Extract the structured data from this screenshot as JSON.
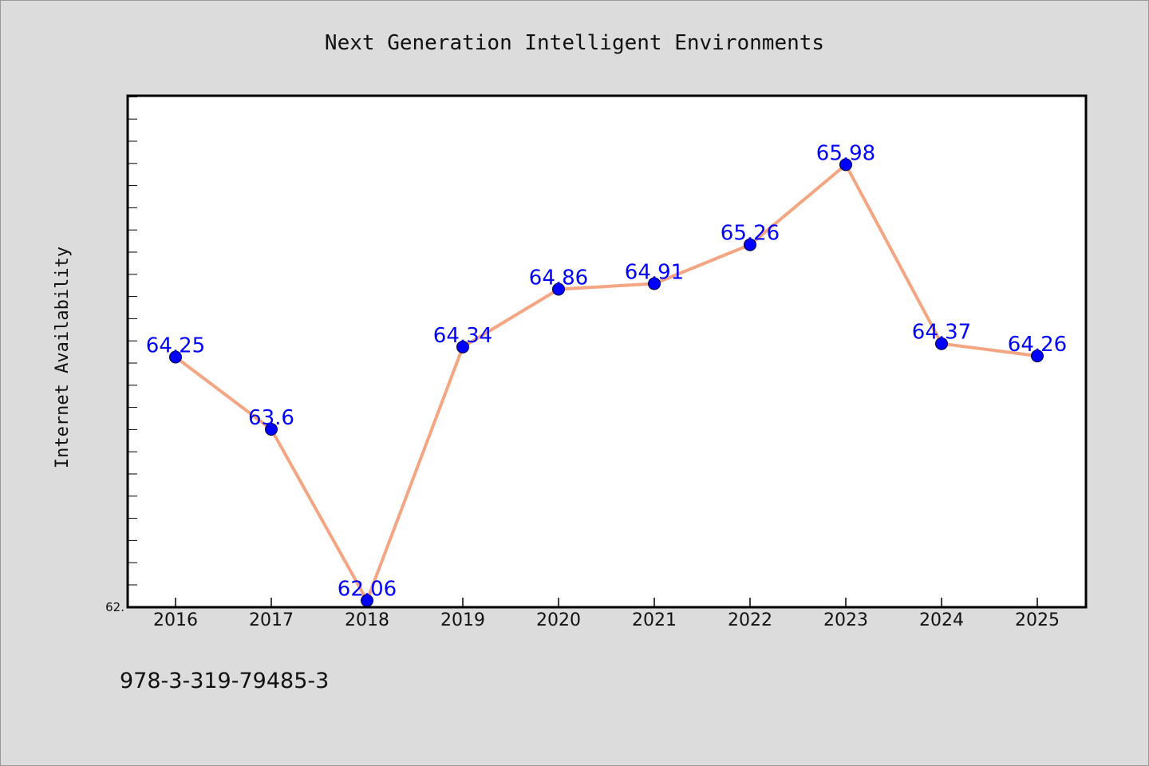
{
  "chart_data": {
    "type": "line",
    "title": "Next Generation Intelligent Environments",
    "ylabel": "Internet Availability",
    "xlabel": "",
    "categories": [
      "2016",
      "2017",
      "2018",
      "2019",
      "2020",
      "2021",
      "2022",
      "2023",
      "2024",
      "2025"
    ],
    "series": [
      {
        "values": [
          64.25,
          63.6,
          62.06,
          64.34,
          64.86,
          64.91,
          65.26,
          65.98,
          64.37,
          64.26
        ]
      }
    ],
    "data_labels": [
      "64.25",
      "63.6",
      "62.06",
      "64.34",
      "64.86",
      "64.91",
      "65.26",
      "65.98",
      "64.37",
      "64.26"
    ],
    "ylim": [
      62.0,
      66.6
    ],
    "y_tick_label": "62.",
    "grid": false,
    "legend": "none",
    "colors": {
      "line": "#f4a582",
      "marker": "#0000ff",
      "label": "#0000ff",
      "background": "#dcdcdc",
      "plot_background": "#ffffff"
    }
  },
  "footnote": "978-3-319-79485-3"
}
